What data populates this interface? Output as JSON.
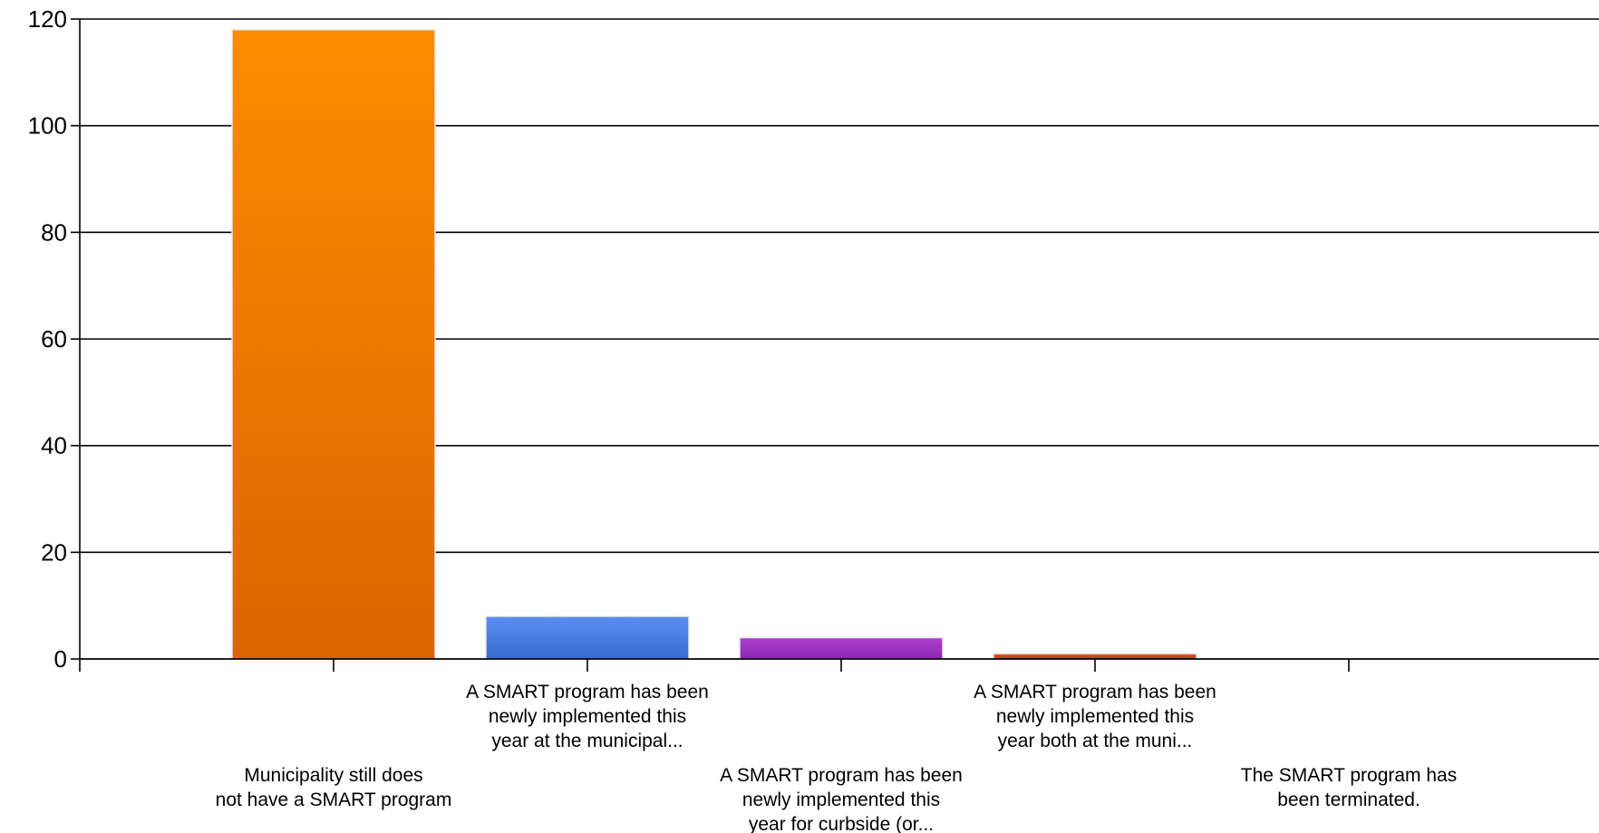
{
  "chart_data": {
    "type": "bar",
    "title": "",
    "xlabel": "",
    "ylabel": "",
    "ylim": [
      0,
      120
    ],
    "yticks": [
      0,
      20,
      40,
      60,
      80,
      100,
      120
    ],
    "grid": true,
    "categories": [
      [
        "Municipality still does",
        "not have a SMART program"
      ],
      [
        "A SMART program has been",
        "newly implemented this",
        "year at the municipal..."
      ],
      [
        "A SMART program has been",
        "newly implemented this",
        "year for curbside (or..."
      ],
      [
        "A SMART program has been",
        "newly implemented this",
        "year both at the muni..."
      ],
      [
        "The SMART program has",
        "been terminated."
      ]
    ],
    "label_row": [
      1,
      0,
      1,
      0,
      1
    ],
    "values": [
      118,
      8,
      4,
      1,
      0
    ],
    "colors": [
      [
        "#ff8c00",
        "#d96600"
      ],
      [
        "#5a8ff0",
        "#3a6bd0"
      ],
      [
        "#b040d0",
        "#8a28b0"
      ],
      [
        "#e05a30",
        "#b83a18"
      ],
      [
        "#888888",
        "#666666"
      ]
    ]
  }
}
